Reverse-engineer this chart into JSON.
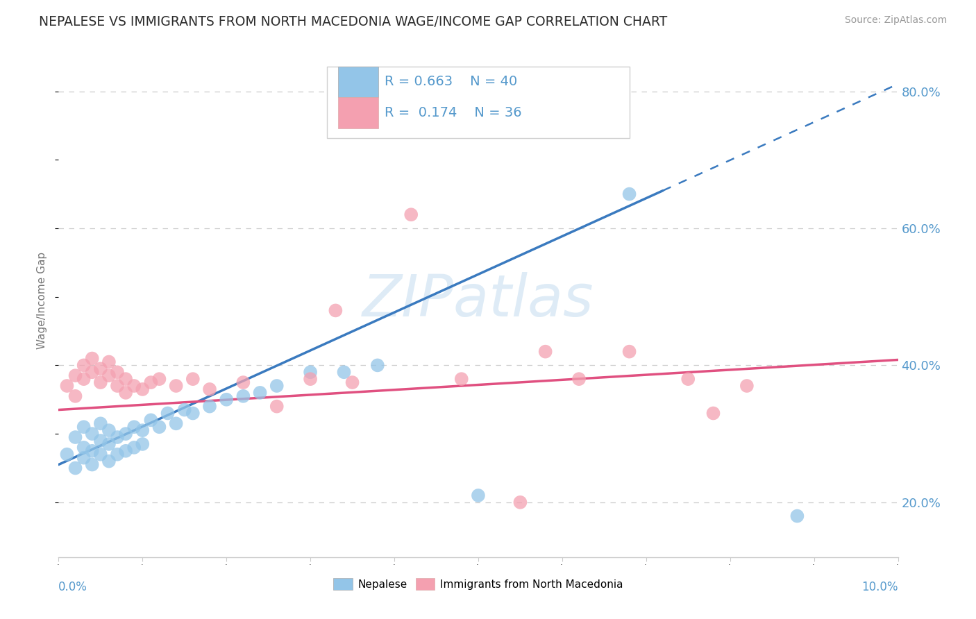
{
  "title": "NEPALESE VS IMMIGRANTS FROM NORTH MACEDONIA WAGE/INCOME GAP CORRELATION CHART",
  "source": "Source: ZipAtlas.com",
  "ylabel": "Wage/Income Gap",
  "xlim": [
    0.0,
    0.1
  ],
  "ylim": [
    0.12,
    0.87
  ],
  "yticks": [
    0.2,
    0.4,
    0.6,
    0.8
  ],
  "ytick_labels": [
    "20.0%",
    "40.0%",
    "60.0%",
    "80.0%"
  ],
  "blue_R": 0.663,
  "blue_N": 40,
  "pink_R": 0.174,
  "pink_N": 36,
  "blue_color": "#93c5e8",
  "pink_color": "#f4a0b0",
  "blue_line_color": "#3a7abf",
  "pink_line_color": "#e05080",
  "axis_label_color": "#5599cc",
  "watermark_color": "#c8dff0",
  "legend_label_blue": "Nepalese",
  "legend_label_pink": "Immigrants from North Macedonia",
  "blue_points_x": [
    0.001,
    0.002,
    0.002,
    0.003,
    0.003,
    0.003,
    0.004,
    0.004,
    0.004,
    0.005,
    0.005,
    0.005,
    0.006,
    0.006,
    0.006,
    0.007,
    0.007,
    0.008,
    0.008,
    0.009,
    0.009,
    0.01,
    0.01,
    0.011,
    0.012,
    0.013,
    0.014,
    0.015,
    0.016,
    0.018,
    0.02,
    0.022,
    0.024,
    0.026,
    0.03,
    0.034,
    0.038,
    0.05,
    0.068,
    0.088
  ],
  "blue_points_y": [
    0.27,
    0.25,
    0.295,
    0.265,
    0.28,
    0.31,
    0.255,
    0.275,
    0.3,
    0.27,
    0.29,
    0.315,
    0.26,
    0.285,
    0.305,
    0.27,
    0.295,
    0.275,
    0.3,
    0.28,
    0.31,
    0.285,
    0.305,
    0.32,
    0.31,
    0.33,
    0.315,
    0.335,
    0.33,
    0.34,
    0.35,
    0.355,
    0.36,
    0.37,
    0.39,
    0.39,
    0.4,
    0.21,
    0.65,
    0.18
  ],
  "pink_points_x": [
    0.001,
    0.002,
    0.002,
    0.003,
    0.003,
    0.004,
    0.004,
    0.005,
    0.005,
    0.006,
    0.006,
    0.007,
    0.007,
    0.008,
    0.008,
    0.009,
    0.01,
    0.011,
    0.012,
    0.014,
    0.016,
    0.018,
    0.022,
    0.026,
    0.03,
    0.035,
    0.042,
    0.048,
    0.055,
    0.062,
    0.068,
    0.075,
    0.078,
    0.082,
    0.058,
    0.033
  ],
  "pink_points_y": [
    0.37,
    0.385,
    0.355,
    0.38,
    0.4,
    0.39,
    0.41,
    0.375,
    0.395,
    0.385,
    0.405,
    0.37,
    0.39,
    0.36,
    0.38,
    0.37,
    0.365,
    0.375,
    0.38,
    0.37,
    0.38,
    0.365,
    0.375,
    0.34,
    0.38,
    0.375,
    0.62,
    0.38,
    0.2,
    0.38,
    0.42,
    0.38,
    0.33,
    0.37,
    0.42,
    0.48
  ],
  "blue_line_x0": 0.0,
  "blue_line_y0": 0.255,
  "blue_line_x1": 0.072,
  "blue_line_y1": 0.655,
  "pink_line_x0": 0.0,
  "pink_line_y0": 0.335,
  "pink_line_x1": 0.1,
  "pink_line_y1": 0.408
}
